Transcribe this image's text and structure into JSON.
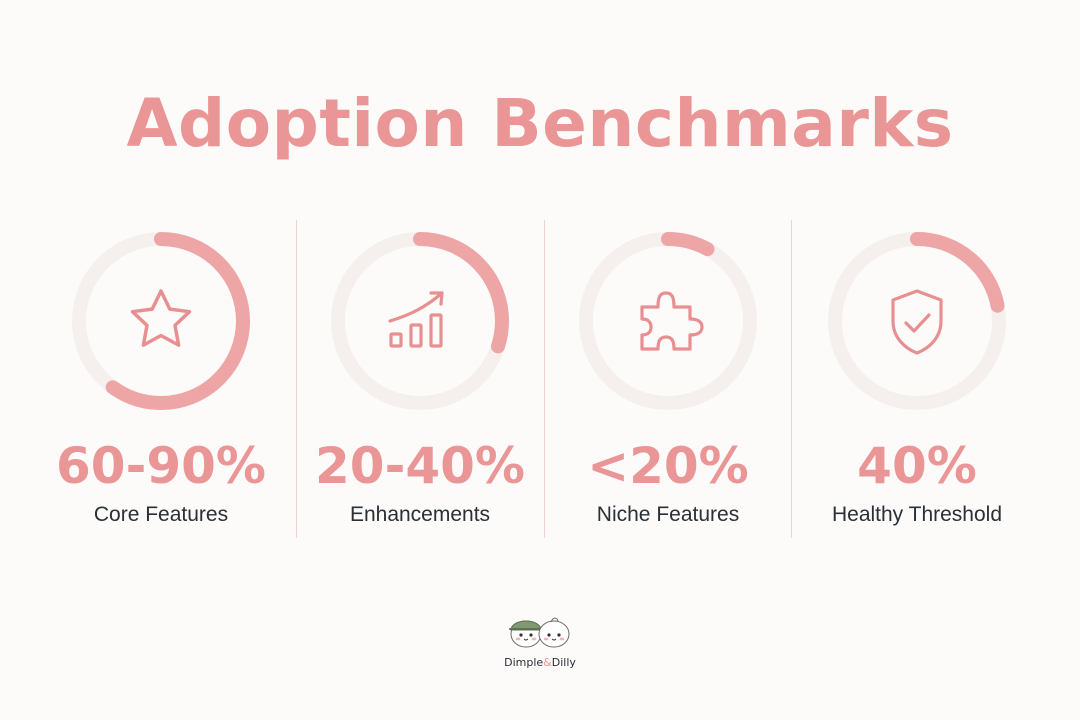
{
  "title": "Adoption Benchmarks",
  "colors": {
    "accent": "#eb9696",
    "track": "#f5f0ee",
    "divider": "#f0d2cd",
    "label_text": "#2b2f36"
  },
  "benchmarks": [
    {
      "value": "60-90%",
      "label": "Core Features",
      "icon": "star-icon",
      "fill_fraction": 0.6
    },
    {
      "value": "20-40%",
      "label": "Enhancements",
      "icon": "growth-chart-icon",
      "fill_fraction": 0.3
    },
    {
      "value": "<20%",
      "label": "Niche Features",
      "icon": "puzzle-piece-icon",
      "fill_fraction": 0.08
    },
    {
      "value": "40%",
      "label": "Healthy Threshold",
      "icon": "shield-check-icon",
      "fill_fraction": 0.22
    }
  ],
  "logo": {
    "name_part1": "Dimple",
    "name_amp": "&",
    "name_part2": "Dilly"
  }
}
